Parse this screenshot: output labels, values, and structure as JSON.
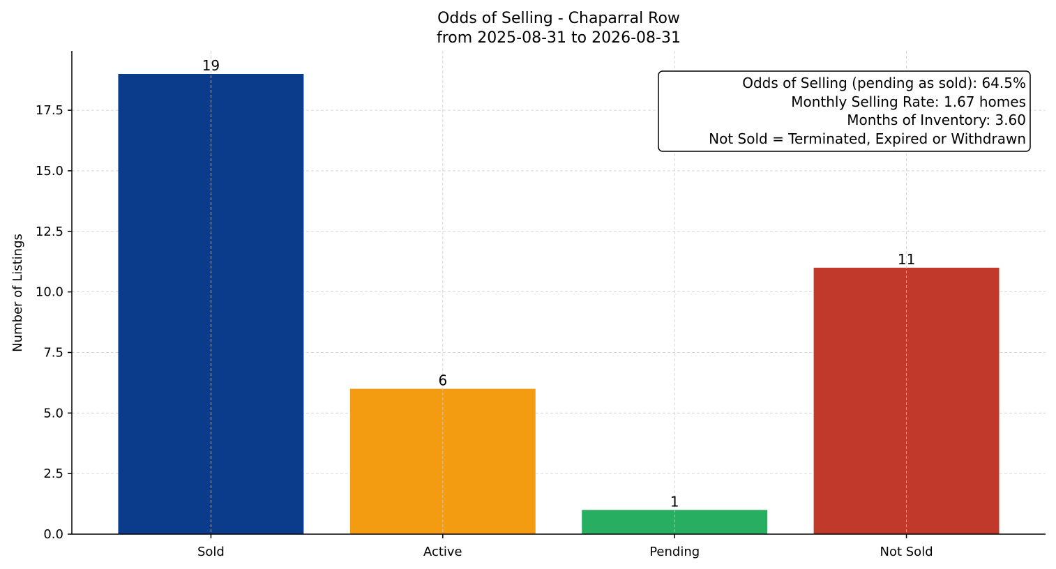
{
  "chart_data": {
    "type": "bar",
    "title": "Odds of Selling - Chaparral Row",
    "subtitle": "from 2025-08-31 to 2026-08-31",
    "xlabel": "",
    "ylabel": "Number of Listings",
    "categories": [
      "Sold",
      "Active",
      "Pending",
      "Not Sold"
    ],
    "values": [
      19,
      6,
      1,
      11
    ],
    "value_labels": [
      "19",
      "6",
      "1",
      "11"
    ],
    "colors": [
      "#0b3c8c",
      "#f39c12",
      "#27ae60",
      "#c0392b"
    ],
    "ylim": [
      0,
      19.95
    ],
    "yticks": [
      0.0,
      2.5,
      5.0,
      7.5,
      10.0,
      12.5,
      15.0,
      17.5
    ],
    "ytick_labels": [
      "0.0",
      "2.5",
      "5.0",
      "7.5",
      "10.0",
      "12.5",
      "15.0",
      "17.5"
    ],
    "grid": true,
    "info_box": {
      "placement": "top-right",
      "lines": [
        "Odds of Selling (pending as sold): 64.5%",
        "Monthly Selling Rate: 1.67 homes",
        "Months of Inventory: 3.60",
        "Not Sold = Terminated, Expired or Withdrawn"
      ]
    }
  }
}
